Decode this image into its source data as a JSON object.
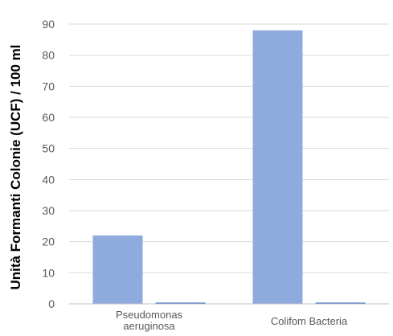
{
  "chart_data": {
    "type": "bar",
    "title": "",
    "xlabel": "",
    "ylabel": "Unità Formanti Colonie (UCF) / 100 ml",
    "ylim": [
      0,
      90
    ],
    "yticks": [
      0,
      10,
      20,
      30,
      40,
      50,
      60,
      70,
      80,
      90
    ],
    "grid": true,
    "legend": "none",
    "categories": [
      "Pseudomonas aeruginosa",
      "Colifom Bacteria"
    ],
    "category_label_lines": [
      [
        "Pseudomonas",
        "aeruginosa"
      ],
      [
        "Colifom Bacteria"
      ]
    ],
    "series": [
      {
        "values": [
          22,
          88
        ],
        "color": "#8faadc"
      },
      {
        "values": [
          0.4,
          0.4
        ],
        "color": "#4472c4"
      }
    ],
    "gridline_color": "#d9d9d9",
    "axis_color": "#bfbfbf"
  }
}
